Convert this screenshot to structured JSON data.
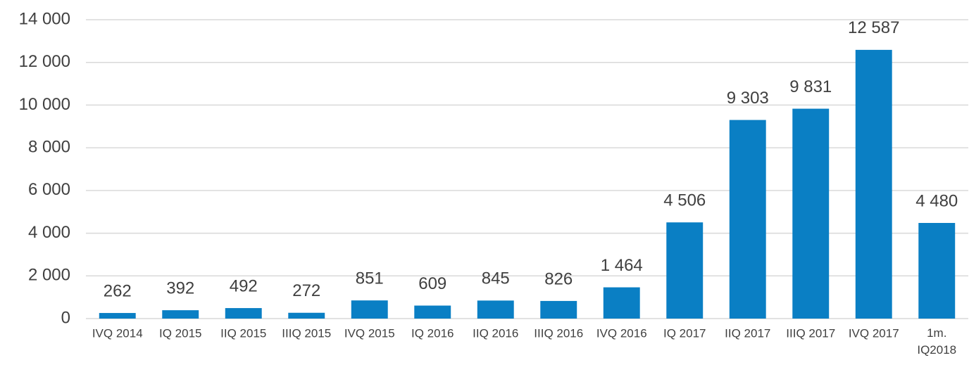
{
  "chart_data": {
    "type": "bar",
    "categories": [
      "IVQ 2014",
      "IQ 2015",
      "IIQ 2015",
      "IIIQ 2015",
      "IVQ 2015",
      "IQ 2016",
      "IIQ 2016",
      "IIIQ 2016",
      "IVQ 2016",
      "IQ 2017",
      "IIQ 2017",
      "IIIQ 2017",
      "IVQ 2017",
      "1m. IQ2018"
    ],
    "values": [
      262,
      392,
      492,
      272,
      851,
      609,
      845,
      826,
      1464,
      4506,
      9303,
      9831,
      12587,
      4480
    ],
    "value_labels": [
      "262",
      "392",
      "492",
      "272",
      "851",
      "609",
      "845",
      "826",
      "1 464",
      "4 506",
      "9 303",
      "9 831",
      "12 587",
      "4 480"
    ],
    "color": "#0a7fc4",
    "ylim": [
      0,
      14000
    ],
    "yticks": [
      0,
      {
        "value": 2000,
        "label": "2 000"
      },
      {
        "value": 4000,
        "label": "4 000"
      },
      {
        "value": 6000,
        "label": "6 000"
      },
      {
        "value": 8000,
        "label": "8 000"
      },
      {
        "value": 10000,
        "label": "10 000"
      },
      {
        "value": 12000,
        "label": "12 000"
      },
      {
        "value": 14000,
        "label": "14 000"
      }
    ],
    "grid": true
  }
}
